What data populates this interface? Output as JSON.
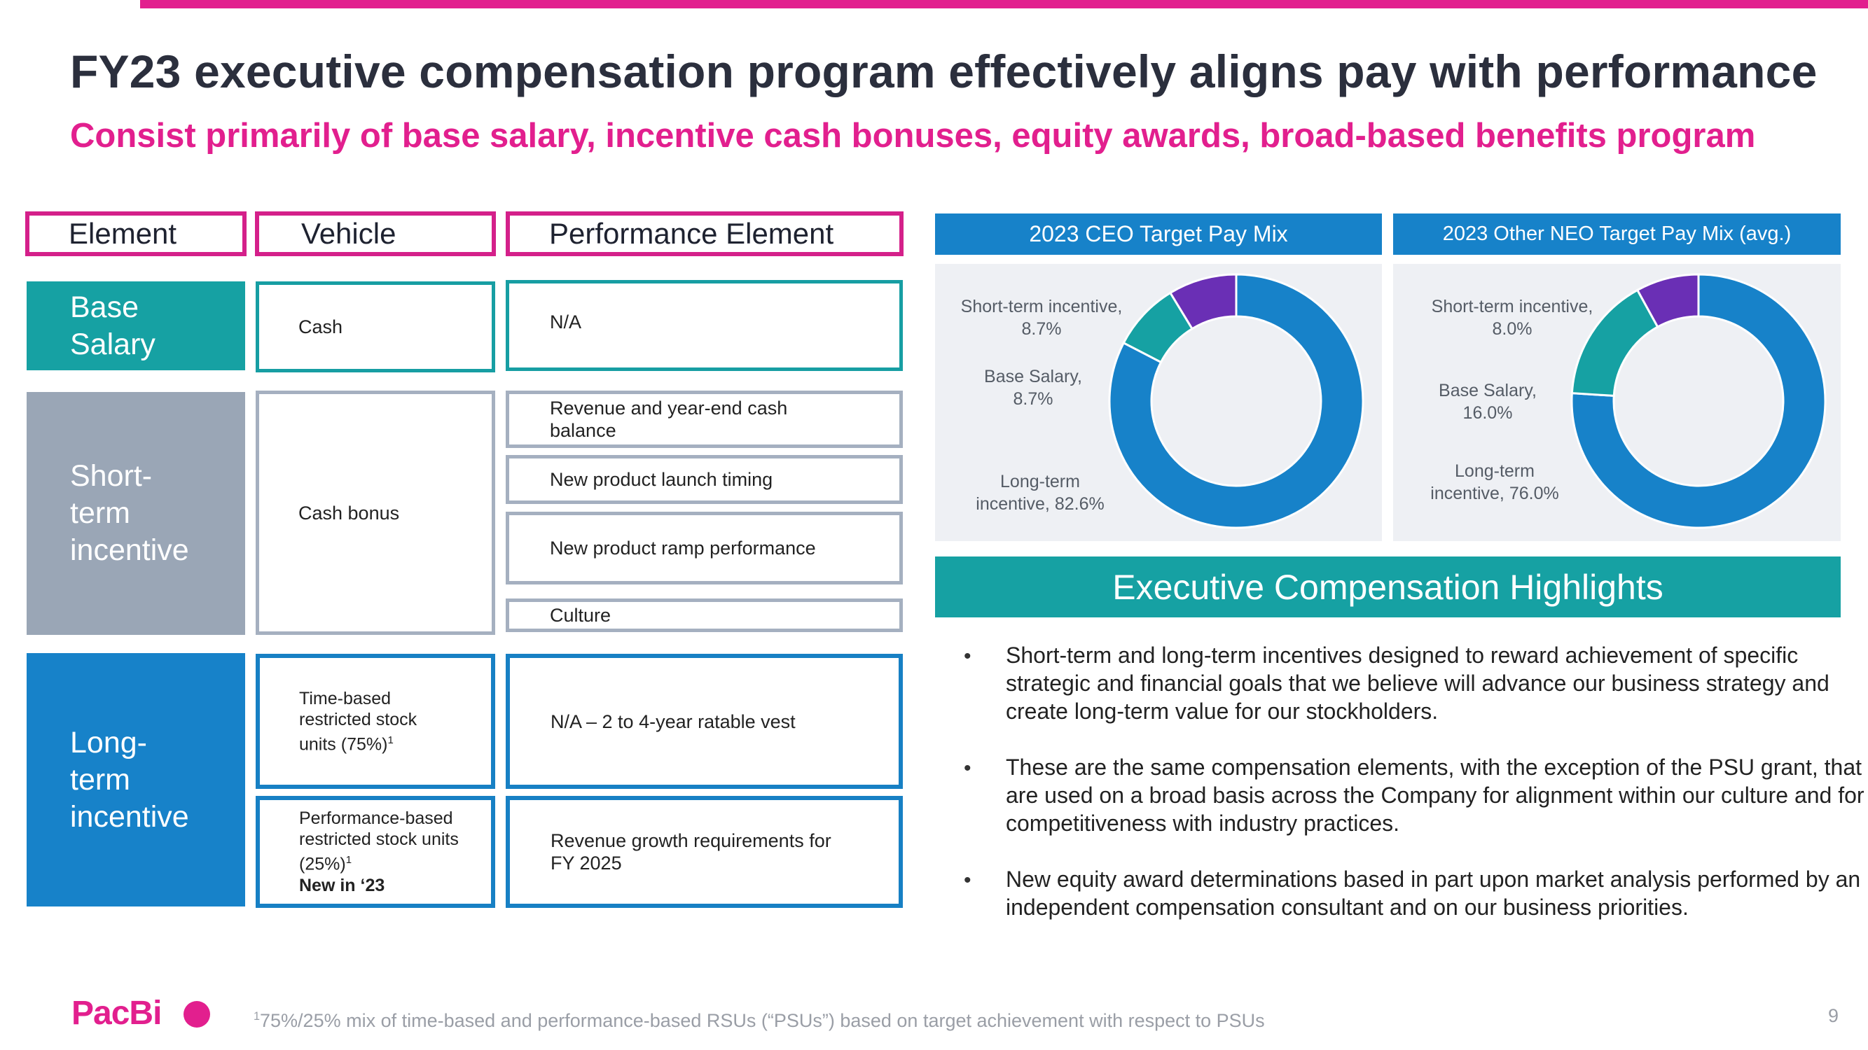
{
  "title": "FY23 executive compensation program effectively aligns pay with performance",
  "subtitle": "Consist primarily of base salary, incentive cash bonuses, equity awards, broad-based benefits program",
  "colors": {
    "pink": "#e21f8e",
    "teal": "#16a1a3",
    "gray": "#9aa6b6",
    "blue": "#1782c9",
    "purple": "#6a2fb5"
  },
  "table": {
    "headers": [
      "Element",
      "Vehicle",
      "Performance Element"
    ],
    "base_salary": {
      "label": "Base Salary",
      "vehicle": "Cash",
      "perf": [
        "N/A"
      ]
    },
    "sti": {
      "label": "Short-term incentive",
      "vehicle": "Cash bonus",
      "perf": [
        "Revenue and year-end cash balance",
        "New product launch timing",
        "New product ramp performance",
        "Culture"
      ]
    },
    "lti": {
      "label": "Long-term incentive",
      "vehicle1": "Time-based restricted stock units (75%)",
      "vehicle1_sup": "1",
      "vehicle2": "Performance-based restricted stock units (25%)",
      "vehicle2_sup": "1",
      "vehicle2_new": "New in ‘23",
      "perf": [
        "N/A – 2 to 4-year ratable vest",
        "Revenue growth requirements for FY 2025"
      ]
    }
  },
  "chart_data": [
    {
      "type": "pie",
      "variant": "donut",
      "title": "2023 CEO Target Pay Mix",
      "categories": [
        "Long-term incentive",
        "Base Salary",
        "Short-term incentive"
      ],
      "values": [
        82.6,
        8.7,
        8.7
      ],
      "colors": [
        "#1782c9",
        "#16a1a3",
        "#6a2fb5"
      ],
      "labels": [
        {
          "line1": "Long-term",
          "line2": "incentive, 82.6%"
        },
        {
          "line1": "Base Salary,",
          "line2": "8.7%"
        },
        {
          "line1": "Short-term incentive,",
          "line2": "8.7%"
        }
      ]
    },
    {
      "type": "pie",
      "variant": "donut",
      "title": "2023 Other NEO Target Pay Mix (avg.)",
      "categories": [
        "Long-term incentive",
        "Base Salary",
        "Short-term incentive"
      ],
      "values": [
        76.0,
        16.0,
        8.0
      ],
      "colors": [
        "#1782c9",
        "#16a1a3",
        "#6a2fb5"
      ],
      "labels": [
        {
          "line1": "Long-term",
          "line2": "incentive, 76.0%"
        },
        {
          "line1": "Base Salary,",
          "line2": "16.0%"
        },
        {
          "line1": "Short-term incentive,",
          "line2": "8.0%"
        }
      ]
    }
  ],
  "highlights": {
    "heading": "Executive Compensation Highlights",
    "bullet": "•",
    "items": [
      "Short-term and long-term incentives designed to reward achievement of specific strategic and financial goals that we believe will advance our business strategy and create long-term value for our stockholders.",
      "These are the same compensation elements, with the exception of the PSU grant, that are used on a broad basis across the Company for alignment within our culture and for competitiveness with industry practices.",
      "New equity award determinations based in part upon market analysis performed by an independent compensation consultant and on our business priorities."
    ]
  },
  "footer": {
    "logo": "PacBi",
    "footnote_sup": "1",
    "footnote": "75%/25% mix of time-based and performance-based RSUs (“PSUs”) based on target achievement with respect to PSUs",
    "page": "9"
  }
}
